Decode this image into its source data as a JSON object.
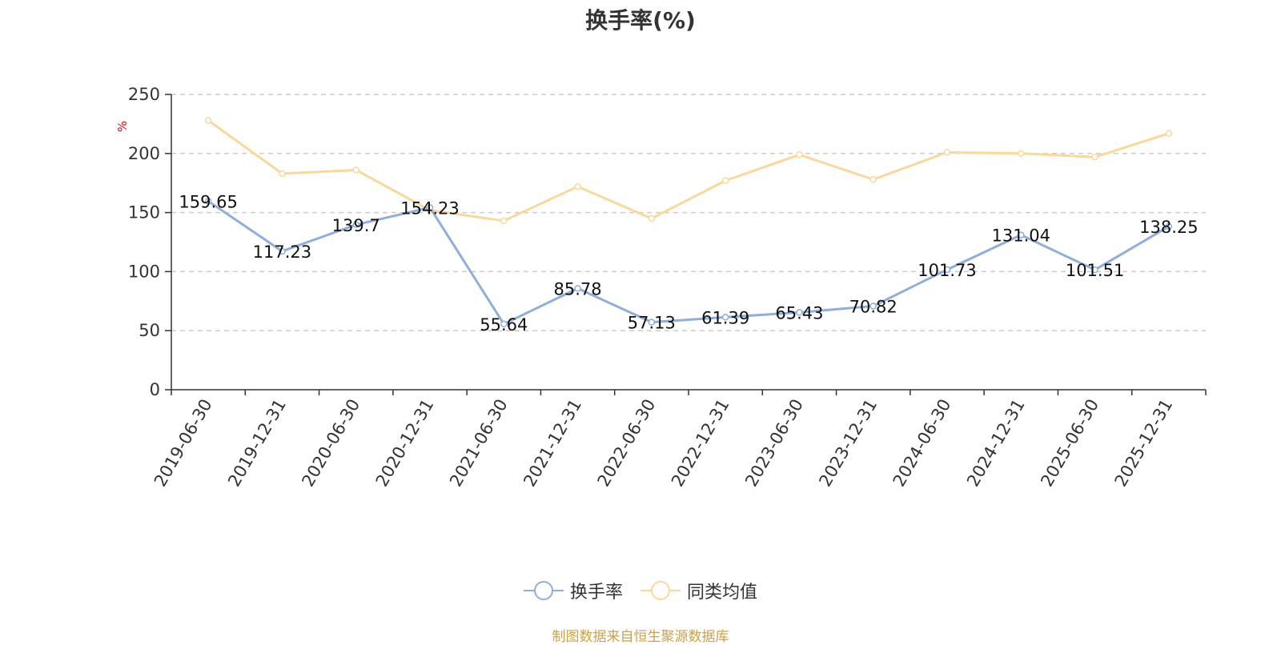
{
  "chart_title": "换手率(%)",
  "source_note": "制图数据来自恒生聚源数据库",
  "colors": {
    "turnover": "#8eaedc",
    "peer_avg": "#fbd89a",
    "axis": "#333333",
    "grid": "#cccccc",
    "unit": "#ff0000"
  },
  "chart_data": {
    "type": "line",
    "title": "换手率(%)",
    "ylabel": "%",
    "ylim": [
      0,
      250
    ],
    "yticks": [
      "0",
      "50",
      "100",
      "150",
      "200",
      "250"
    ],
    "grid": true,
    "legend_position": "bottom-center",
    "categories": [
      "2019-06-30",
      "2019-12-31",
      "2020-06-30",
      "2020-12-31",
      "2021-06-30",
      "2021-12-31",
      "2022-06-30",
      "2022-12-31",
      "2023-06-30",
      "2023-12-31",
      "2024-06-30",
      "2024-12-31",
      "2025-06-30",
      "2025-12-31"
    ],
    "series": [
      {
        "name": "换手率",
        "values": [
          159.65,
          117.23,
          139.7,
          154.23,
          55.64,
          85.78,
          57.13,
          61.39,
          65.43,
          70.82,
          101.73,
          131.04,
          101.51,
          138.25
        ],
        "labels": [
          "159.65",
          "117.23",
          "139.7",
          "154.23",
          "55.64",
          "85.78",
          "57.13",
          "61.39",
          "65.43",
          "70.82",
          "101.73",
          "131.04",
          "101.51",
          "138.25"
        ]
      },
      {
        "name": "同类均值",
        "values": [
          228,
          183,
          186,
          152,
          143,
          172,
          145,
          177,
          199,
          178,
          201,
          200,
          197,
          217
        ]
      }
    ]
  }
}
